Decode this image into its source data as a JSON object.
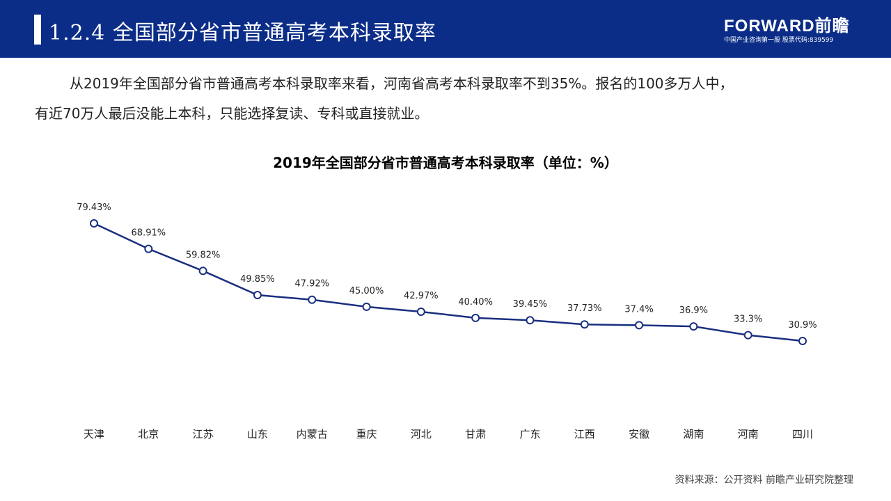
{
  "header": {
    "title": "1.2.4 全国部分省市普通高考本科录取率",
    "logo_main": "FORWARD前瞻",
    "logo_sub": "中国产业咨询第一股  股票代码:839599",
    "color": "#0b2d87"
  },
  "intro": {
    "line1": "从2019年全国部分省市普通高考本科录取率来看，河南省高考本科录取率不到35%。报名的100多万人中，",
    "line2": "有近70万人最后没能上本科，只能选择复读、专科或直接就业。"
  },
  "chart_data": {
    "type": "line",
    "title": "2019年全国部分省市普通高考本科录取率（单位：%）",
    "categories": [
      "天津",
      "北京",
      "江苏",
      "山东",
      "内蒙古",
      "重庆",
      "河北",
      "甘肃",
      "广东",
      "江西",
      "安徽",
      "湖南",
      "河南",
      "四川"
    ],
    "values": [
      79.43,
      68.91,
      59.82,
      49.85,
      47.92,
      45.0,
      42.97,
      40.4,
      39.45,
      37.73,
      37.4,
      36.9,
      33.3,
      30.9
    ],
    "labels": [
      "79.43%",
      "68.91%",
      "59.82%",
      "49.85%",
      "47.92%",
      "45.00%",
      "42.97%",
      "40.40%",
      "39.45%",
      "37.73%",
      "37.4%",
      "36.9%",
      "33.3%",
      "30.9%"
    ],
    "ylim": [
      0,
      100
    ],
    "grid": false,
    "color": "#1a2f80"
  },
  "source": "资料来源：公开资料 前瞻产业研究院整理"
}
